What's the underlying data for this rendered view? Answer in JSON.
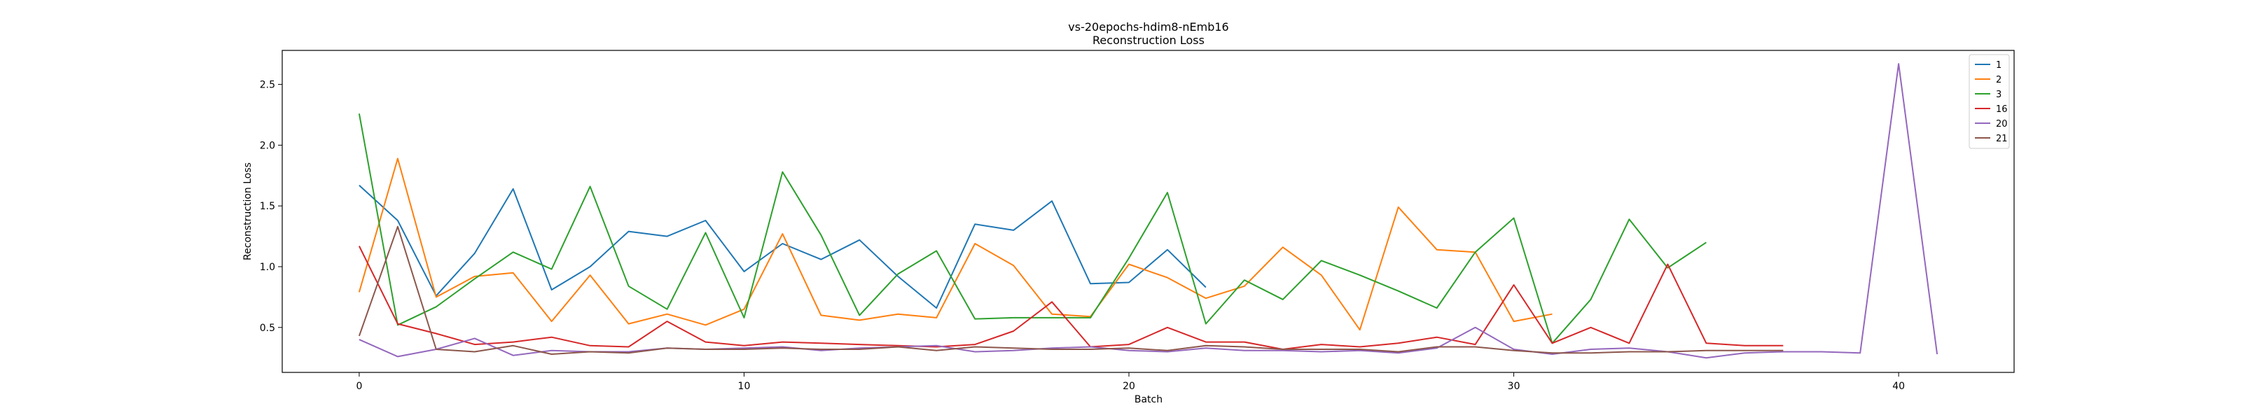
{
  "chart_data": {
    "type": "line",
    "title": "vs-20epochs-hdim8-nEmb16",
    "subtitle": "Reconstruction Loss",
    "xlabel": "Batch",
    "ylabel": "Reconstruction Loss",
    "xlim": [
      -2,
      43
    ],
    "ylim": [
      0.13,
      2.78
    ],
    "xticks": [
      0,
      10,
      20,
      30,
      40
    ],
    "yticks": [
      0.5,
      1.0,
      1.5,
      2.0,
      2.5
    ],
    "ytick_labels": [
      "0.5",
      "1.0",
      "1.5",
      "2.0",
      "2.5"
    ],
    "grid": false,
    "legend_position": "top-right",
    "series": [
      {
        "name": "1",
        "color": "#1f77b4",
        "x": [
          0,
          1,
          2,
          3,
          4,
          5,
          6,
          7,
          8,
          9,
          10,
          11,
          12,
          13,
          14,
          15,
          16,
          17,
          18,
          19,
          20,
          21,
          22
        ],
        "values": [
          1.67,
          1.38,
          0.76,
          1.11,
          1.64,
          0.81,
          1.0,
          1.29,
          1.25,
          1.38,
          0.96,
          1.19,
          1.06,
          1.22,
          0.92,
          0.66,
          1.35,
          1.3,
          1.54,
          0.86,
          0.87,
          1.14,
          0.83
        ]
      },
      {
        "name": "2",
        "color": "#ff7f0e",
        "x": [
          0,
          1,
          2,
          3,
          4,
          5,
          6,
          7,
          8,
          9,
          10,
          11,
          12,
          13,
          14,
          15,
          16,
          17,
          18,
          19,
          20,
          21,
          22,
          23,
          24,
          25,
          26,
          27,
          28,
          29,
          30,
          31
        ],
        "values": [
          0.79,
          1.89,
          0.75,
          0.92,
          0.95,
          0.55,
          0.93,
          0.53,
          0.61,
          0.52,
          0.65,
          1.27,
          0.6,
          0.56,
          0.61,
          0.58,
          1.19,
          1.01,
          0.61,
          0.59,
          1.02,
          0.91,
          0.74,
          0.84,
          1.16,
          0.93,
          0.48,
          1.49,
          1.14,
          1.12,
          0.55,
          0.61
        ]
      },
      {
        "name": "3",
        "color": "#2ca02c",
        "x": [
          0,
          1,
          2,
          3,
          4,
          5,
          6,
          7,
          8,
          9,
          10,
          11,
          12,
          13,
          14,
          15,
          16,
          17,
          18,
          19,
          20,
          21,
          22,
          23,
          24,
          25,
          26,
          27,
          28,
          29,
          30,
          31,
          32,
          33,
          34,
          35
        ],
        "values": [
          2.26,
          0.52,
          0.67,
          0.9,
          1.12,
          0.98,
          1.66,
          0.84,
          0.65,
          1.28,
          0.58,
          1.78,
          1.26,
          0.6,
          0.94,
          1.13,
          0.57,
          0.58,
          0.58,
          0.58,
          1.07,
          1.61,
          0.53,
          0.89,
          0.73,
          1.05,
          0.93,
          0.8,
          0.66,
          1.12,
          1.4,
          0.37,
          0.73,
          1.39,
          0.99,
          1.2
        ]
      },
      {
        "name": "16",
        "color": "#d62728",
        "x": [
          0,
          1,
          2,
          3,
          4,
          5,
          6,
          7,
          8,
          9,
          10,
          11,
          12,
          13,
          14,
          15,
          16,
          17,
          18,
          19,
          20,
          21,
          22,
          23,
          24,
          25,
          26,
          27,
          28,
          29,
          30,
          31,
          32,
          33,
          34,
          35,
          36,
          37
        ],
        "values": [
          1.17,
          0.53,
          0.45,
          0.36,
          0.38,
          0.42,
          0.35,
          0.34,
          0.55,
          0.38,
          0.35,
          0.38,
          0.37,
          0.36,
          0.35,
          0.34,
          0.36,
          0.47,
          0.71,
          0.34,
          0.36,
          0.5,
          0.38,
          0.38,
          0.32,
          0.36,
          0.34,
          0.37,
          0.42,
          0.36,
          0.85,
          0.37,
          0.5,
          0.37,
          1.02,
          0.37,
          0.35,
          0.35
        ]
      },
      {
        "name": "20",
        "color": "#9467bd",
        "x": [
          0,
          1,
          2,
          3,
          4,
          5,
          6,
          7,
          8,
          9,
          10,
          11,
          12,
          13,
          14,
          15,
          16,
          17,
          18,
          19,
          20,
          21,
          22,
          23,
          24,
          25,
          26,
          27,
          28,
          29,
          30,
          31,
          32,
          33,
          34,
          35,
          36,
          37,
          38,
          39,
          40,
          41
        ],
        "values": [
          0.4,
          0.26,
          0.32,
          0.41,
          0.27,
          0.31,
          0.3,
          0.3,
          0.33,
          0.32,
          0.33,
          0.34,
          0.31,
          0.33,
          0.34,
          0.35,
          0.3,
          0.31,
          0.33,
          0.34,
          0.31,
          0.3,
          0.33,
          0.31,
          0.31,
          0.3,
          0.31,
          0.29,
          0.33,
          0.5,
          0.32,
          0.28,
          0.32,
          0.33,
          0.3,
          0.25,
          0.29,
          0.3,
          0.3,
          0.29,
          2.67,
          0.28
        ]
      },
      {
        "name": "21",
        "color": "#8c564b",
        "x": [
          0,
          1,
          2,
          3,
          4,
          5,
          6,
          7,
          8,
          9,
          10,
          11,
          12,
          13,
          14,
          15,
          16,
          17,
          18,
          19,
          20,
          21,
          22,
          23,
          24,
          25,
          26,
          27,
          28,
          29,
          30,
          31,
          32,
          33,
          34,
          35,
          36,
          37
        ],
        "values": [
          0.43,
          1.33,
          0.32,
          0.3,
          0.35,
          0.28,
          0.3,
          0.29,
          0.33,
          0.32,
          0.32,
          0.33,
          0.32,
          0.32,
          0.34,
          0.31,
          0.34,
          0.33,
          0.32,
          0.32,
          0.33,
          0.31,
          0.35,
          0.34,
          0.32,
          0.32,
          0.32,
          0.3,
          0.34,
          0.34,
          0.31,
          0.29,
          0.29,
          0.3,
          0.3,
          0.31,
          0.31,
          0.31
        ]
      }
    ]
  }
}
